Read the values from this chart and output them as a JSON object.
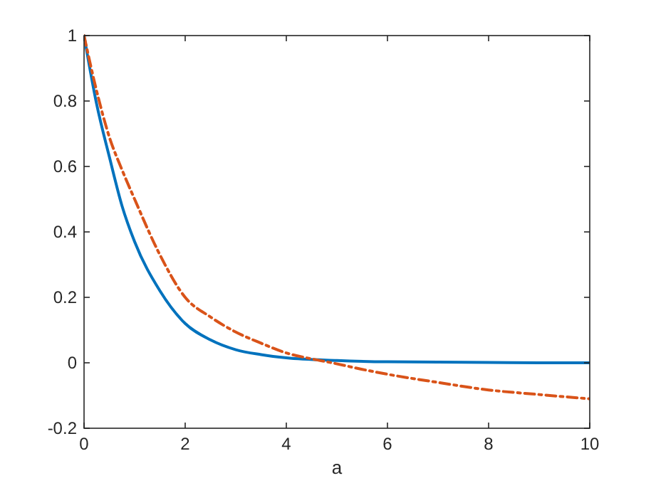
{
  "chart_data": {
    "type": "line",
    "xlabel": "a",
    "xlim": [
      0,
      10
    ],
    "ylim": [
      -0.2,
      1
    ],
    "xticks": [
      0,
      2,
      4,
      6,
      8,
      10
    ],
    "yticks": [
      -0.2,
      0,
      0.2,
      0.4,
      0.6,
      0.8,
      1
    ],
    "grid": false,
    "series": [
      {
        "color": "#0072bd",
        "line_style": "solid",
        "x": [
          0,
          0.25,
          0.5,
          0.75,
          1,
          1.5,
          2,
          2.5,
          3,
          3.5,
          4,
          5,
          6,
          7,
          8,
          9,
          10
        ],
        "values": [
          1,
          0.79,
          0.63,
          0.48,
          0.37,
          0.22,
          0.12,
          0.07,
          0.04,
          0.025,
          0.015,
          0.007,
          0.003,
          0.002,
          0.001,
          0,
          0
        ]
      },
      {
        "color": "#d95319",
        "line_style": "dashed",
        "x": [
          0,
          0.25,
          0.5,
          0.75,
          1,
          1.5,
          2,
          2.5,
          3,
          3.5,
          4,
          4.5,
          4.9,
          5.5,
          6,
          7,
          8,
          9,
          10
        ],
        "values": [
          1,
          0.83,
          0.69,
          0.59,
          0.5,
          0.33,
          0.2,
          0.14,
          0.094,
          0.06,
          0.03,
          0.012,
          0,
          -0.02,
          -0.035,
          -0.06,
          -0.083,
          -0.097,
          -0.11
        ]
      }
    ]
  }
}
